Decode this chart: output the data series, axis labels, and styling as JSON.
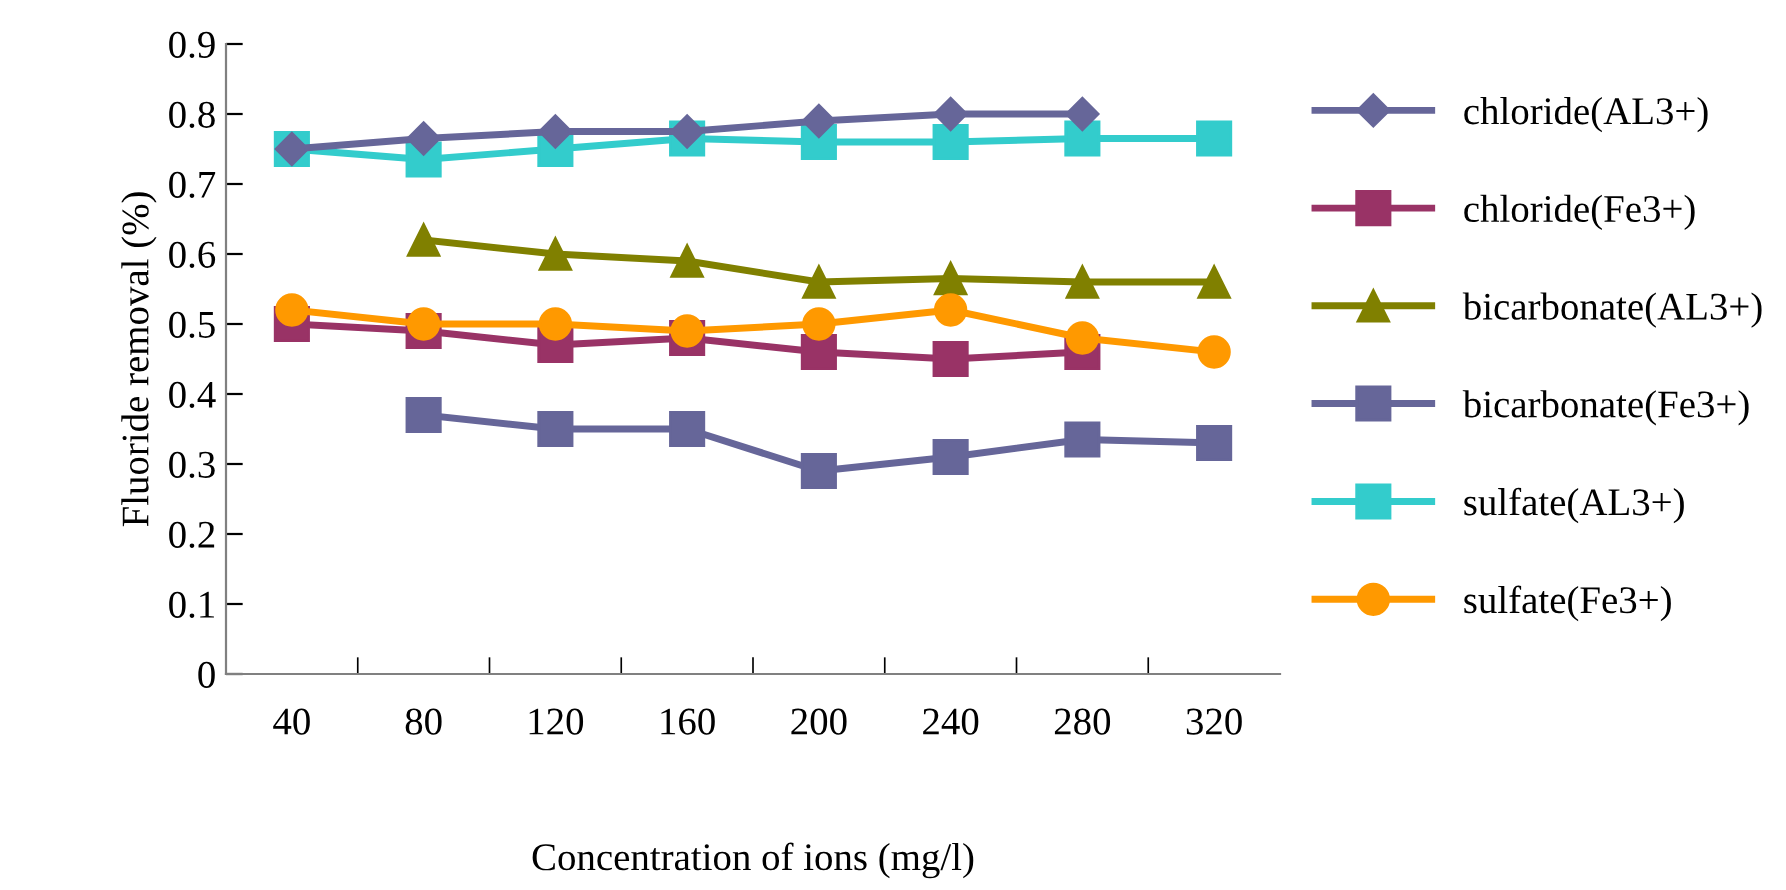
{
  "chart_data": {
    "type": "line",
    "xlabel": "Concentration of ions (mg/l)",
    "ylabel": "Fluoride removal (%)",
    "categories": [
      "40",
      "80",
      "120",
      "160",
      "200",
      "240",
      "280",
      "320"
    ],
    "series": [
      {
        "name": "chloride(AL3+)",
        "color": "#666699",
        "marker": "diamond",
        "values": [
          0.75,
          0.765,
          0.775,
          0.775,
          0.79,
          0.8,
          0.8,
          null
        ]
      },
      {
        "name": "chloride(Fe3+)",
        "color": "#993366",
        "marker": "square",
        "values": [
          0.5,
          0.49,
          0.47,
          0.48,
          0.46,
          0.45,
          0.46,
          null
        ]
      },
      {
        "name": "bicarbonate(AL3+)",
        "color": "#808000",
        "marker": "triangle",
        "values": [
          null,
          0.62,
          0.6,
          0.59,
          0.56,
          0.565,
          0.56,
          0.56
        ]
      },
      {
        "name": "bicarbonate(Fe3+)",
        "color": "#666699",
        "marker": "square",
        "values": [
          null,
          0.37,
          0.35,
          0.35,
          0.29,
          0.31,
          0.335,
          0.33
        ]
      },
      {
        "name": "sulfate(AL3+)",
        "color": "#33cccc",
        "marker": "square",
        "values": [
          0.75,
          0.735,
          0.75,
          0.765,
          0.76,
          0.76,
          0.765,
          0.765
        ]
      },
      {
        "name": "sulfate(Fe3+)",
        "color": "#ff9900",
        "marker": "circle",
        "values": [
          0.52,
          0.5,
          0.5,
          0.49,
          0.5,
          0.52,
          0.48,
          0.46
        ]
      }
    ],
    "ylim": [
      0,
      0.9
    ],
    "yticks": [
      0,
      0.1,
      0.2,
      0.3,
      0.4,
      0.5,
      0.6,
      0.7,
      0.8,
      0.9
    ],
    "grid": false,
    "legend": "right"
  }
}
